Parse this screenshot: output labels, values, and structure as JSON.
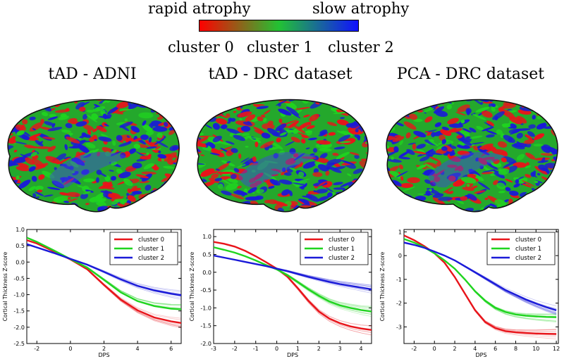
{
  "header": {
    "left_label": "rapid atrophy",
    "right_label": "slow atrophy",
    "clusters": [
      "cluster 0",
      "cluster 1",
      "cluster 2"
    ],
    "colors": {
      "cluster0": "#e8141a",
      "cluster1": "#1fd41f",
      "cluster2": "#1a1ad8"
    }
  },
  "panels": [
    {
      "title": "tAD - ADNI"
    },
    {
      "title": "tAD - DRC dataset"
    },
    {
      "title": "PCA - DRC dataset"
    }
  ],
  "chart_data": [
    {
      "type": "line",
      "title": "",
      "xlabel": "DPS",
      "ylabel": "Cortical Thickness Z-score",
      "xlim": [
        -2.6,
        6.6
      ],
      "ylim": [
        -2.5,
        1.0
      ],
      "xticks": [
        -2,
        0,
        2,
        4,
        6
      ],
      "yticks": [
        1.0,
        0.5,
        0.0,
        -0.5,
        -1.0,
        -1.5,
        -2.0,
        -2.5
      ],
      "ytick_labels": [
        "1.0",
        "0.5",
        "0.0",
        "-0.5",
        "-1.0",
        "-1.5",
        "-2.0",
        "-2.5"
      ],
      "x": [
        -2.6,
        -2,
        -1,
        0,
        1,
        2,
        3,
        4,
        5,
        6,
        6.6
      ],
      "series": [
        {
          "name": "cluster 0",
          "values": [
            0.67,
            0.57,
            0.33,
            0.08,
            -0.22,
            -0.7,
            -1.15,
            -1.48,
            -1.7,
            -1.82,
            -1.87
          ]
        },
        {
          "name": "cluster 1",
          "values": [
            0.75,
            0.62,
            0.36,
            0.09,
            -0.17,
            -0.55,
            -0.93,
            -1.2,
            -1.35,
            -1.43,
            -1.45
          ]
        },
        {
          "name": "cluster 2",
          "values": [
            0.55,
            0.45,
            0.28,
            0.1,
            -0.08,
            -0.3,
            -0.53,
            -0.73,
            -0.87,
            -0.97,
            -1.02
          ]
        }
      ],
      "legend_loc": "top-right"
    },
    {
      "type": "line",
      "title": "",
      "xlabel": "DPS",
      "ylabel": "Cortical Thickness Z-score",
      "xlim": [
        -3.0,
        4.5
      ],
      "ylim": [
        -2.0,
        1.2
      ],
      "xticks": [
        -3,
        -2,
        -1,
        0,
        1,
        2,
        3,
        4
      ],
      "yticks": [
        1.0,
        0.5,
        0.0,
        -0.5,
        -1.0,
        -1.5,
        -2.0
      ],
      "ytick_labels": [
        "1.0",
        "0.5",
        "0.0",
        "-0.5",
        "-1.0",
        "-1.5",
        "-2.0"
      ],
      "x": [
        -3,
        -2.5,
        -2,
        -1.5,
        -1,
        -0.5,
        0,
        0.5,
        1,
        1.5,
        2,
        2.5,
        3,
        3.5,
        4,
        4.5
      ],
      "series": [
        {
          "name": "cluster 0",
          "values": [
            0.85,
            0.8,
            0.72,
            0.6,
            0.45,
            0.28,
            0.1,
            -0.12,
            -0.45,
            -0.8,
            -1.1,
            -1.3,
            -1.43,
            -1.52,
            -1.58,
            -1.62
          ]
        },
        {
          "name": "cluster 1",
          "values": [
            0.7,
            0.63,
            0.55,
            0.45,
            0.33,
            0.2,
            0.08,
            -0.08,
            -0.28,
            -0.48,
            -0.66,
            -0.82,
            -0.93,
            -1.0,
            -1.06,
            -1.1
          ]
        },
        {
          "name": "cluster 2",
          "values": [
            0.47,
            0.41,
            0.35,
            0.29,
            0.23,
            0.17,
            0.1,
            0.03,
            -0.05,
            -0.13,
            -0.2,
            -0.27,
            -0.33,
            -0.38,
            -0.43,
            -0.48
          ]
        }
      ],
      "legend_loc": "top-right"
    },
    {
      "type": "line",
      "title": "",
      "xlabel": "DPS",
      "ylabel": "Cortical Thickness Z-score",
      "xlim": [
        -3.0,
        12.2
      ],
      "ylim": [
        -3.7,
        1.1
      ],
      "xticks": [
        -2,
        0,
        2,
        4,
        6,
        8,
        10,
        12
      ],
      "yticks": [
        1,
        0,
        -1,
        -2,
        -3
      ],
      "ytick_labels": [
        "1",
        "0",
        "-1",
        "-2",
        "-3"
      ],
      "x": [
        -3,
        -2,
        -1,
        0,
        1,
        2,
        3,
        4,
        5,
        6,
        7,
        8,
        9,
        10,
        11,
        12
      ],
      "series": [
        {
          "name": "cluster 0",
          "values": [
            0.85,
            0.65,
            0.4,
            0.1,
            -0.3,
            -0.9,
            -1.6,
            -2.3,
            -2.8,
            -3.05,
            -3.18,
            -3.23,
            -3.26,
            -3.28,
            -3.29,
            -3.3
          ]
        },
        {
          "name": "cluster 1",
          "values": [
            0.7,
            0.55,
            0.35,
            0.1,
            -0.2,
            -0.55,
            -1.0,
            -1.5,
            -1.9,
            -2.2,
            -2.38,
            -2.48,
            -2.53,
            -2.56,
            -2.58,
            -2.59
          ]
        },
        {
          "name": "cluster 2",
          "values": [
            0.55,
            0.45,
            0.33,
            0.17,
            0.0,
            -0.2,
            -0.45,
            -0.7,
            -0.95,
            -1.2,
            -1.45,
            -1.65,
            -1.85,
            -2.02,
            -2.17,
            -2.3
          ]
        }
      ],
      "legend_loc": "top-right"
    }
  ]
}
